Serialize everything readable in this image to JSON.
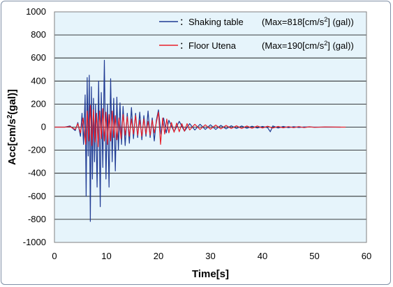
{
  "chart_data": {
    "type": "line",
    "title": "",
    "xlabel": "Time[s]",
    "ylabel_parts": {
      "prefix": "Acc[cm/s",
      "sup": "2",
      "suffix": "(gal)]"
    },
    "xlim": [
      0,
      60
    ],
    "ylim": [
      -1000,
      1000
    ],
    "x_ticks": [
      0,
      10,
      20,
      30,
      40,
      50,
      60
    ],
    "y_ticks": [
      1000,
      800,
      600,
      400,
      200,
      0,
      -200,
      -400,
      -600,
      -800,
      -1000
    ],
    "grid": "horizontal",
    "plot_background": "#e6f4fb",
    "legend_position": "top-right",
    "series": [
      {
        "name": "：Shaking table",
        "max_text": {
          "prefix": "(Max=818[cm/s",
          "sup": "2",
          "suffix": "] (gal))"
        },
        "color": "#1f3a93",
        "x": [
          0,
          2,
          3,
          4,
          4.5,
          5,
          5.3,
          5.6,
          5.9,
          6.1,
          6.3,
          6.5,
          6.7,
          6.9,
          7.1,
          7.3,
          7.5,
          7.7,
          7.9,
          8.2,
          8.5,
          8.8,
          9.0,
          9.3,
          9.6,
          9.9,
          10.2,
          10.5,
          10.8,
          11.1,
          11.4,
          11.7,
          12.0,
          12.3,
          12.6,
          12.9,
          13.2,
          13.6,
          14.0,
          14.4,
          14.8,
          15.2,
          15.6,
          16.0,
          16.4,
          16.8,
          17.2,
          17.6,
          18.0,
          18.4,
          18.8,
          19.2,
          19.6,
          20.0,
          20.5,
          21.0,
          21.5,
          22,
          23,
          24,
          25,
          26,
          27,
          28,
          29,
          30,
          31,
          32,
          33,
          34,
          35,
          36,
          37,
          38,
          39,
          40,
          41,
          41.5,
          42,
          43,
          44,
          45,
          46,
          47,
          48,
          50,
          55
        ],
        "y": [
          0,
          0,
          10,
          -30,
          40,
          -80,
          120,
          -150,
          280,
          -600,
          430,
          -250,
          450,
          -818,
          350,
          -450,
          250,
          -300,
          200,
          -520,
          400,
          -690,
          300,
          -350,
          580,
          -450,
          200,
          -520,
          420,
          -300,
          250,
          -380,
          260,
          -200,
          210,
          -150,
          180,
          -160,
          120,
          -140,
          170,
          -100,
          120,
          -90,
          130,
          -110,
          100,
          -80,
          140,
          -90,
          80,
          -120,
          60,
          150,
          -60,
          80,
          -50,
          60,
          -40,
          50,
          -35,
          30,
          -25,
          25,
          -20,
          20,
          -20,
          15,
          -15,
          12,
          -12,
          10,
          -10,
          8,
          -8,
          6,
          -5,
          -40,
          10,
          -8,
          6,
          -5,
          4,
          -3,
          2,
          0,
          0
        ]
      },
      {
        "name": "：Floor Utena",
        "max_text": {
          "prefix": "(Max=190[cm/s",
          "sup": "2",
          "suffix": "] (gal))"
        },
        "color": "#e8202a",
        "x": [
          0,
          2,
          3,
          4,
          4.5,
          5,
          5.5,
          6.0,
          6.3,
          6.6,
          6.9,
          7.2,
          7.5,
          7.8,
          8.1,
          8.4,
          8.7,
          9.0,
          9.3,
          9.6,
          9.9,
          10.2,
          10.5,
          10.8,
          11.1,
          11.4,
          11.7,
          12.0,
          12.4,
          12.8,
          13.2,
          13.6,
          14.0,
          14.4,
          14.8,
          15.2,
          15.6,
          16.0,
          16.4,
          16.8,
          17.2,
          17.6,
          18.0,
          18.4,
          18.8,
          19.2,
          19.6,
          20.0,
          20.4,
          20.8,
          21.2,
          21.6,
          22,
          22.5,
          23,
          23.5,
          24,
          24.5,
          25,
          25.5,
          26,
          27,
          28,
          29,
          30,
          31,
          32,
          33,
          34,
          35,
          36,
          37,
          38,
          39,
          40,
          41,
          42,
          43,
          44,
          45,
          46,
          47,
          48,
          49,
          50,
          52,
          55,
          56
        ],
        "y": [
          0,
          0,
          5,
          -20,
          30,
          -50,
          80,
          -150,
          140,
          -120,
          190,
          -160,
          150,
          -130,
          120,
          -170,
          140,
          -100,
          160,
          -120,
          130,
          -150,
          110,
          -120,
          140,
          -90,
          100,
          -110,
          80,
          -100,
          110,
          -70,
          90,
          -80,
          70,
          -60,
          100,
          -70,
          60,
          -80,
          70,
          -60,
          50,
          -70,
          60,
          -50,
          40,
          130,
          -150,
          80,
          -60,
          70,
          -50,
          40,
          -45,
          35,
          -40,
          30,
          -35,
          30,
          -25,
          25,
          -20,
          20,
          -18,
          18,
          -15,
          15,
          -12,
          12,
          -12,
          10,
          -10,
          10,
          -8,
          8,
          -8,
          6,
          -6,
          5,
          -5,
          5,
          -4,
          3,
          -2,
          2,
          0,
          0
        ]
      }
    ]
  }
}
